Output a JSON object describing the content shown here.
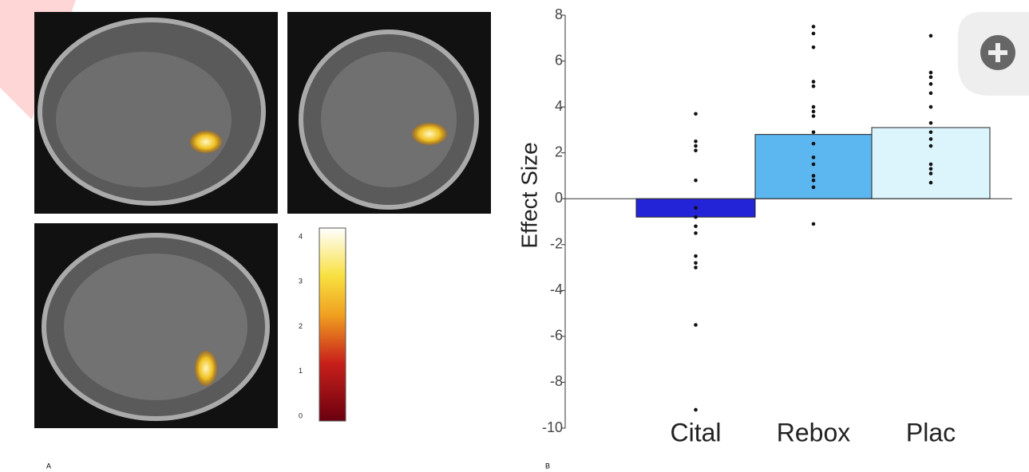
{
  "panel_labels": [
    "A",
    "B"
  ],
  "colorbar": {
    "ticks": [
      0,
      1,
      2,
      3,
      4
    ],
    "lim": [
      0,
      4.3
    ]
  },
  "chart_data": {
    "type": "bar",
    "y_label": "Effect Size",
    "categories": [
      "Cital",
      "Rebox",
      "Plac"
    ],
    "values": [
      -0.8,
      2.8,
      3.1
    ],
    "colors": [
      "#2323d8",
      "#5cb6f0",
      "#dcf5fd"
    ],
    "points": [
      [
        3.7,
        2.5,
        2.3,
        2.1,
        0.8,
        -0.4,
        -0.8,
        -1.2,
        -1.5,
        -2.5,
        -2.8,
        -3.0,
        -5.5,
        -9.2
      ],
      [
        7.5,
        7.2,
        6.6,
        5.1,
        4.9,
        4.0,
        3.8,
        3.6,
        2.9,
        2.4,
        1.8,
        1.5,
        1.0,
        0.8,
        0.5,
        -1.1
      ],
      [
        7.1,
        5.5,
        5.3,
        5.0,
        4.6,
        4.0,
        3.3,
        2.9,
        2.6,
        2.3,
        1.5,
        1.3,
        1.1,
        0.7
      ]
    ],
    "ylim": [
      -10,
      8
    ],
    "yticks": [
      -10,
      -8,
      -6,
      -4,
      -2,
      0,
      2,
      4,
      6,
      8
    ]
  }
}
